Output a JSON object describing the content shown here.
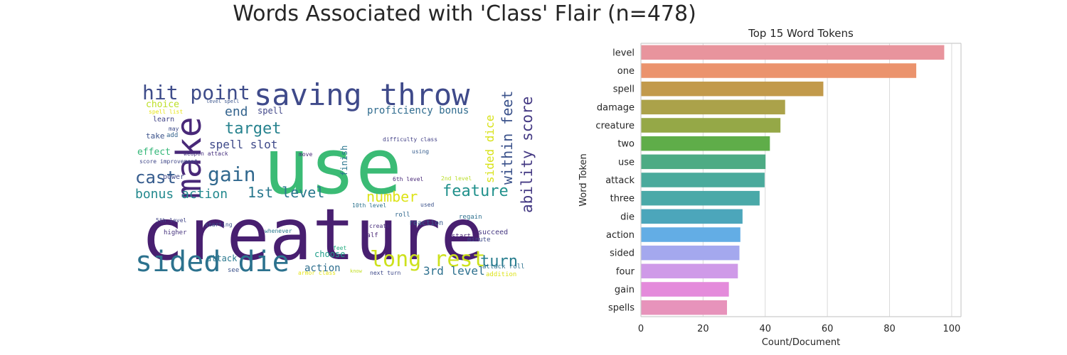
{
  "figure": {
    "title": "Words Associated with 'Class' Flair (n=478)"
  },
  "chart_data": [
    {
      "type": "wordcloud",
      "words": [
        {
          "text": "creature",
          "weight": 100,
          "color": "#481f70"
        },
        {
          "text": "use",
          "weight": 96,
          "color": "#3bbb75"
        },
        {
          "text": "saving throw",
          "weight": 55,
          "color": "#3f4a8a"
        },
        {
          "text": "sided die",
          "weight": 50,
          "color": "#2c728e"
        },
        {
          "text": "make",
          "weight": 48,
          "color": "#482878"
        },
        {
          "text": "hit point",
          "weight": 40,
          "color": "#3e4c8a"
        },
        {
          "text": "long rest",
          "weight": 38,
          "color": "#cde11d"
        },
        {
          "text": "gain",
          "weight": 36,
          "color": "#31688e"
        },
        {
          "text": "cast",
          "weight": 33,
          "color": "#365c8d"
        },
        {
          "text": "target",
          "weight": 32,
          "color": "#26828e"
        },
        {
          "text": "turn",
          "weight": 30,
          "color": "#287d8e"
        },
        {
          "text": "feature",
          "weight": 30,
          "color": "#21918c"
        },
        {
          "text": "1st level",
          "weight": 29,
          "color": "#2a788e"
        },
        {
          "text": "ability score",
          "weight": 28,
          "color": "#443983"
        },
        {
          "text": "within feet",
          "weight": 27,
          "color": "#3b528b"
        },
        {
          "text": "number",
          "weight": 27,
          "color": "#dde318"
        },
        {
          "text": "bonus action",
          "weight": 26,
          "color": "#23898e"
        },
        {
          "text": "end",
          "weight": 25,
          "color": "#33638d"
        },
        {
          "text": "sided dice",
          "weight": 23,
          "color": "#d8e219"
        },
        {
          "text": "3rd level",
          "weight": 22,
          "color": "#2d708e"
        },
        {
          "text": "spell slot",
          "weight": 21,
          "color": "#3e4989"
        },
        {
          "text": "action",
          "weight": 20,
          "color": "#2e6e8e"
        },
        {
          "text": "proficiency bonus",
          "weight": 20,
          "color": "#2f6b8e"
        },
        {
          "text": "choice",
          "weight": 18,
          "color": "#bddf26"
        },
        {
          "text": "effect",
          "weight": 18,
          "color": "#35b779"
        },
        {
          "text": "spell",
          "weight": 16,
          "color": "#404688"
        },
        {
          "text": "choose",
          "weight": 15,
          "color": "#1f9e89"
        },
        {
          "text": "attack",
          "weight": 15,
          "color": "#2a788e"
        },
        {
          "text": "take",
          "weight": 14,
          "color": "#3b528b"
        },
        {
          "text": "finish",
          "weight": 14,
          "color": "#2a768e"
        },
        {
          "text": "learn",
          "weight": 12,
          "color": "#414487"
        },
        {
          "text": "power",
          "weight": 12,
          "color": "#3f4889"
        },
        {
          "text": "higher",
          "weight": 12,
          "color": "#46337e"
        },
        {
          "text": "reaction",
          "weight": 12,
          "color": "#38598c"
        },
        {
          "text": "start",
          "weight": 12,
          "color": "#482576"
        },
        {
          "text": "succeed",
          "weight": 12,
          "color": "#453781"
        },
        {
          "text": "minute",
          "weight": 11,
          "color": "#3e4a89"
        },
        {
          "text": "regain",
          "weight": 11,
          "color": "#2d708e"
        },
        {
          "text": "half",
          "weight": 11,
          "color": "#482475"
        },
        {
          "text": "see",
          "weight": 11,
          "color": "#3b528b"
        },
        {
          "text": "create",
          "weight": 11,
          "color": "#472d7b"
        },
        {
          "text": "used",
          "weight": 10,
          "color": "#3b528b"
        },
        {
          "text": "move",
          "weight": 10,
          "color": "#482677"
        },
        {
          "text": "5th level",
          "weight": 10,
          "color": "#414487"
        },
        {
          "text": "starting",
          "weight": 10,
          "color": "#3b528b"
        },
        {
          "text": "whenever",
          "weight": 10,
          "color": "#2a788e"
        },
        {
          "text": "attack roll",
          "weight": 10,
          "color": "#2c728e"
        },
        {
          "text": "next turn",
          "weight": 10,
          "color": "#3e4989"
        },
        {
          "text": "2nd level",
          "weight": 9,
          "color": "#bade28"
        },
        {
          "text": "10th level",
          "weight": 9,
          "color": "#2c728e"
        },
        {
          "text": "6th level",
          "weight": 9,
          "color": "#482878"
        },
        {
          "text": "weapon attack",
          "weight": 9,
          "color": "#46307e"
        },
        {
          "text": "score improvement",
          "weight": 9,
          "color": "#3f4788"
        },
        {
          "text": "difficulty class",
          "weight": 9,
          "color": "#424086"
        },
        {
          "text": "add",
          "weight": 9,
          "color": "#33638d"
        },
        {
          "text": "may",
          "weight": 8,
          "color": "#3e4c8a"
        },
        {
          "text": "spell list",
          "weight": 8,
          "color": "#e7e419"
        },
        {
          "text": "level spell",
          "weight": 8,
          "color": "#3a548c"
        },
        {
          "text": "armor class",
          "weight": 8,
          "color": "#e5e419"
        },
        {
          "text": "roll",
          "weight": 8,
          "color": "#31688e"
        },
        {
          "text": "addition",
          "weight": 8,
          "color": "#dde318"
        },
        {
          "text": "know",
          "weight": 8,
          "color": "#c2df23"
        },
        {
          "text": "feet",
          "weight": 8,
          "color": "#26ad81"
        },
        {
          "text": "using",
          "weight": 8,
          "color": "#365d8d"
        }
      ]
    },
    {
      "type": "bar",
      "orientation": "horizontal",
      "title": "Top 15 Word Tokens",
      "xlabel": "Count/Document",
      "ylabel": "Word Token",
      "xlim": [
        0,
        103
      ],
      "xticks": [
        0,
        20,
        40,
        60,
        80,
        100
      ],
      "grid": "vertical",
      "categories": [
        "level",
        "one",
        "spell",
        "damage",
        "creature",
        "two",
        "use",
        "attack",
        "three",
        "die",
        "action",
        "sided",
        "four",
        "gain",
        "spells"
      ],
      "values": [
        97.6,
        88.6,
        58.7,
        46.4,
        44.9,
        41.5,
        40.1,
        39.8,
        38.2,
        32.7,
        32.0,
        31.7,
        31.2,
        28.3,
        27.7
      ],
      "colors": [
        "#e8949d",
        "#eb936d",
        "#c29a4b",
        "#aba24a",
        "#95a847",
        "#5fad49",
        "#4dab84",
        "#4aaa9c",
        "#4aa9a8",
        "#4ca6bb",
        "#63ade5",
        "#a4a8ee",
        "#cf9ae8",
        "#e48bdb",
        "#e793bb"
      ]
    }
  ]
}
